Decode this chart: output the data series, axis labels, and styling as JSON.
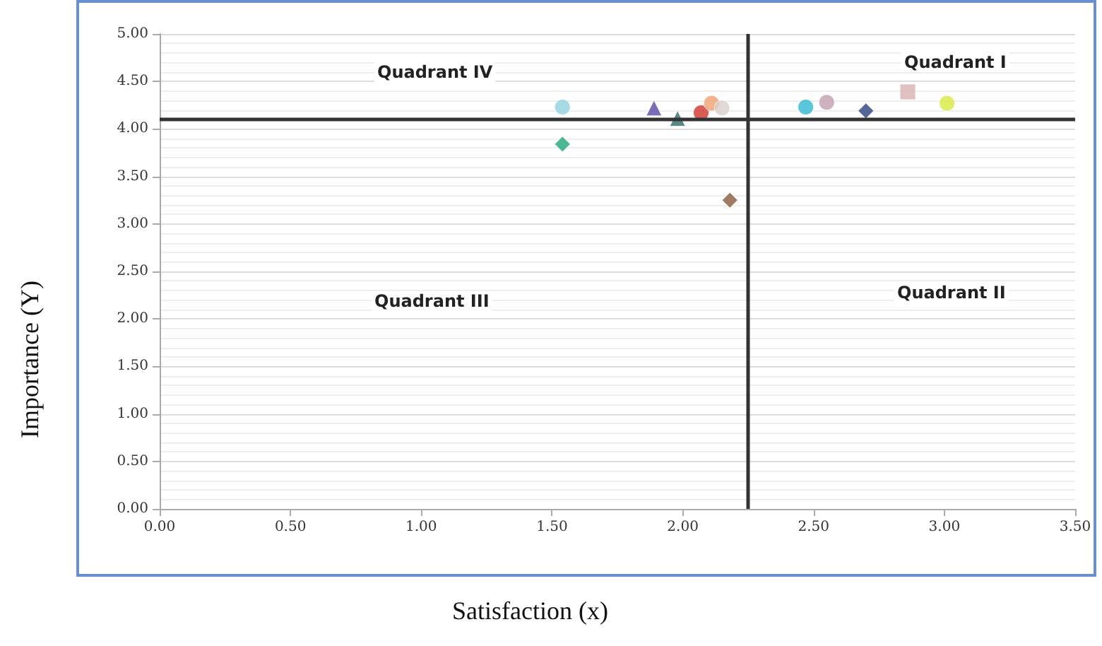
{
  "chart_data": {
    "type": "scatter",
    "xlabel": "Satisfaction (x)",
    "ylabel": "Importance (Y)",
    "xlim": [
      0,
      3.5
    ],
    "ylim": [
      0,
      5
    ],
    "xticks": [
      {
        "value": 0,
        "label": "0.00"
      },
      {
        "value": 0.5,
        "label": "0.50"
      },
      {
        "value": 1,
        "label": "1.00"
      },
      {
        "value": 1.5,
        "label": "1.50"
      },
      {
        "value": 2,
        "label": "2.00"
      },
      {
        "value": 2.5,
        "label": "2.50"
      },
      {
        "value": 3,
        "label": "3.00"
      },
      {
        "value": 3.5,
        "label": "3.50"
      }
    ],
    "yticks": [
      {
        "value": 0,
        "label": "0.00"
      },
      {
        "value": 0.5,
        "label": "0.50"
      },
      {
        "value": 1,
        "label": "1.00"
      },
      {
        "value": 1.5,
        "label": "1.50"
      },
      {
        "value": 2,
        "label": "2.00"
      },
      {
        "value": 2.5,
        "label": "2.50"
      },
      {
        "value": 3,
        "label": "3.00"
      },
      {
        "value": 3.5,
        "label": "3.50"
      },
      {
        "value": 4,
        "label": "4.00"
      },
      {
        "value": 4.5,
        "label": "4.50"
      },
      {
        "value": 5,
        "label": "5.00"
      }
    ],
    "grid": "y",
    "series": [
      {
        "color": "#8fd3dc",
        "marker": "circle",
        "x": [
          1.54
        ],
        "values": [
          4.23
        ]
      },
      {
        "color": "#1fa87a",
        "marker": "diamond",
        "x": [
          1.54
        ],
        "values": [
          3.84
        ]
      },
      {
        "color": "#5a4aa8",
        "marker": "triangle",
        "x": [
          1.89
        ],
        "values": [
          4.22
        ]
      },
      {
        "color": "#2f6a68",
        "marker": "triangle",
        "x": [
          1.98
        ],
        "values": [
          4.11
        ]
      },
      {
        "color": "#d0342c",
        "marker": "circle",
        "x": [
          2.07
        ],
        "values": [
          4.17
        ]
      },
      {
        "color": "#f0a070",
        "marker": "circle",
        "x": [
          2.11
        ],
        "values": [
          4.27
        ]
      },
      {
        "color": "#d8d0cc",
        "marker": "circle",
        "x": [
          2.15
        ],
        "values": [
          4.22
        ]
      },
      {
        "color": "#8a5a3a",
        "marker": "diamond",
        "x": [
          2.18
        ],
        "values": [
          3.25
        ]
      },
      {
        "color": "#30b8d0",
        "marker": "circle",
        "x": [
          2.47
        ],
        "values": [
          4.23
        ]
      },
      {
        "color": "#c0a0b0",
        "marker": "circle",
        "x": [
          2.55
        ],
        "values": [
          4.28
        ]
      },
      {
        "color": "#2a4080",
        "marker": "diamond",
        "x": [
          2.7
        ],
        "values": [
          4.19
        ]
      },
      {
        "color": "#d8b0b0",
        "marker": "square",
        "x": [
          2.86
        ],
        "values": [
          4.39
        ]
      },
      {
        "color": "#d8e840",
        "marker": "circle",
        "x": [
          3.01
        ],
        "values": [
          4.27
        ]
      }
    ],
    "ref_lines": [
      {
        "axis": "x",
        "value": 2.25,
        "color": "#333333"
      },
      {
        "axis": "y",
        "value": 4.1,
        "color": "#333333"
      }
    ],
    "annotations": [
      "Quadrant IV",
      "Quadrant I",
      "Quadrant III",
      "Quadrant II"
    ]
  }
}
